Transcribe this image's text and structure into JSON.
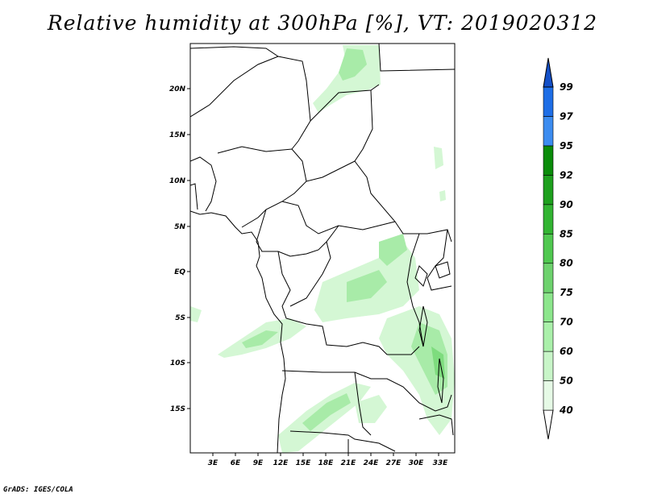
{
  "title": "Relative humidity at 300hPa [%], VT: 2019020312",
  "credit": "GrADS: IGES/COLA",
  "map": {
    "lat_labels": [
      "20N",
      "15N",
      "10N",
      "5N",
      "EQ",
      "5S",
      "10S",
      "15S"
    ],
    "lon_labels": [
      "3E",
      "6E",
      "9E",
      "12E",
      "15E",
      "18E",
      "21E",
      "24E",
      "27E",
      "30E",
      "33E"
    ]
  },
  "colorbar": {
    "levels": [
      "40",
      "50",
      "60",
      "70",
      "75",
      "80",
      "85",
      "90",
      "92",
      "95",
      "97",
      "99"
    ],
    "colors": [
      "#ffffff",
      "#e6fae6",
      "#c8f5c8",
      "#aaf0aa",
      "#8ce68c",
      "#6ed26e",
      "#50c850",
      "#32b432",
      "#1ea01e",
      "#0a8c0a",
      "#3c8cf0",
      "#1e6ee6",
      "#1450c8"
    ]
  },
  "shading_colors": {
    "light": "#d4f7d4",
    "mid": "#a8eba8",
    "dark": "#7edc7e"
  }
}
